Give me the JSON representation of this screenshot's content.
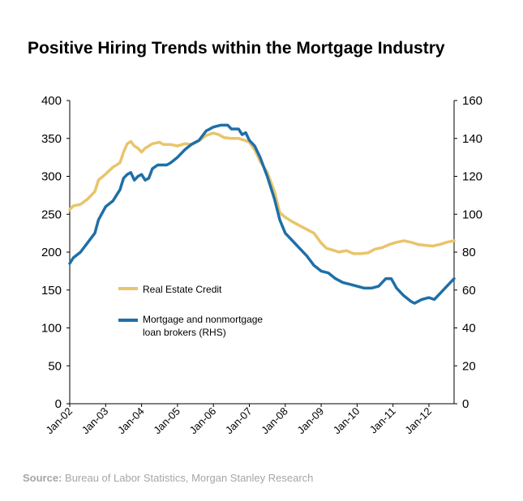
{
  "chart_data": {
    "type": "line",
    "title": "Positive Hiring Trends within the Mortgage Industry",
    "xlabel": "",
    "ylabel": "",
    "left_axis": {
      "ylim": [
        0,
        400
      ],
      "ticks": [
        "0",
        "50",
        "100",
        "150",
        "200",
        "250",
        "300",
        "350",
        "400"
      ]
    },
    "right_axis": {
      "ylim": [
        0,
        160
      ],
      "ticks": [
        "0",
        "20",
        "40",
        "60",
        "80",
        "100",
        "120",
        "140",
        "160"
      ]
    },
    "x_ticks": [
      "Jan-02",
      "Jan-03",
      "Jan-04",
      "Jan-05",
      "Jan-06",
      "Jan-07",
      "Jan-08",
      "Jan-09",
      "Jan-10",
      "Jan-11",
      "Jan-12"
    ],
    "x_range": [
      2002.0,
      2012.7
    ],
    "grid": false,
    "legend_position": "center-left",
    "series": [
      {
        "name": "Real Estate Credit",
        "axis": "left",
        "color": "#e9c46a",
        "points": [
          [
            2002.0,
            256
          ],
          [
            2002.1,
            261
          ],
          [
            2002.3,
            263
          ],
          [
            2002.5,
            270
          ],
          [
            2002.7,
            280
          ],
          [
            2002.8,
            295
          ],
          [
            2003.0,
            303
          ],
          [
            2003.2,
            312
          ],
          [
            2003.4,
            318
          ],
          [
            2003.5,
            332
          ],
          [
            2003.6,
            343
          ],
          [
            2003.7,
            346
          ],
          [
            2003.8,
            340
          ],
          [
            2003.9,
            337
          ],
          [
            2004.0,
            332
          ],
          [
            2004.1,
            337
          ],
          [
            2004.3,
            343
          ],
          [
            2004.5,
            345
          ],
          [
            2004.6,
            342
          ],
          [
            2004.8,
            342
          ],
          [
            2005.0,
            340
          ],
          [
            2005.2,
            343
          ],
          [
            2005.4,
            342
          ],
          [
            2005.6,
            347
          ],
          [
            2005.8,
            354
          ],
          [
            2006.0,
            357
          ],
          [
            2006.15,
            355
          ],
          [
            2006.3,
            351
          ],
          [
            2006.5,
            350
          ],
          [
            2006.7,
            350
          ],
          [
            2006.9,
            347
          ],
          [
            2007.0,
            345
          ],
          [
            2007.15,
            335
          ],
          [
            2007.3,
            320
          ],
          [
            2007.5,
            305
          ],
          [
            2007.7,
            280
          ],
          [
            2007.85,
            252
          ],
          [
            2008.0,
            246
          ],
          [
            2008.2,
            240
          ],
          [
            2008.4,
            235
          ],
          [
            2008.6,
            230
          ],
          [
            2008.8,
            225
          ],
          [
            2009.0,
            212
          ],
          [
            2009.15,
            205
          ],
          [
            2009.3,
            203
          ],
          [
            2009.5,
            200
          ],
          [
            2009.7,
            202
          ],
          [
            2009.9,
            198
          ],
          [
            2010.1,
            198
          ],
          [
            2010.3,
            199
          ],
          [
            2010.5,
            204
          ],
          [
            2010.7,
            206
          ],
          [
            2010.9,
            210
          ],
          [
            2011.1,
            213
          ],
          [
            2011.3,
            215
          ],
          [
            2011.5,
            213
          ],
          [
            2011.7,
            210
          ],
          [
            2011.9,
            209
          ],
          [
            2012.1,
            208
          ],
          [
            2012.3,
            210
          ],
          [
            2012.5,
            213
          ],
          [
            2012.7,
            215
          ]
        ]
      },
      {
        "name": "Mortgage and nonmortgage loan brokers (RHS)",
        "axis": "right",
        "color": "#1f6fa8",
        "points": [
          [
            2002.0,
            74
          ],
          [
            2002.1,
            77
          ],
          [
            2002.3,
            80
          ],
          [
            2002.5,
            85
          ],
          [
            2002.7,
            90
          ],
          [
            2002.8,
            97
          ],
          [
            2003.0,
            104
          ],
          [
            2003.2,
            107
          ],
          [
            2003.4,
            113
          ],
          [
            2003.5,
            119
          ],
          [
            2003.6,
            121
          ],
          [
            2003.7,
            122
          ],
          [
            2003.8,
            118
          ],
          [
            2003.9,
            120
          ],
          [
            2004.0,
            121
          ],
          [
            2004.1,
            118
          ],
          [
            2004.2,
            119
          ],
          [
            2004.3,
            124
          ],
          [
            2004.45,
            126
          ],
          [
            2004.7,
            126
          ],
          [
            2004.8,
            127
          ],
          [
            2005.0,
            130
          ],
          [
            2005.2,
            134
          ],
          [
            2005.4,
            137
          ],
          [
            2005.6,
            139
          ],
          [
            2005.8,
            144
          ],
          [
            2006.0,
            146
          ],
          [
            2006.2,
            147
          ],
          [
            2006.4,
            147
          ],
          [
            2006.5,
            145
          ],
          [
            2006.7,
            145
          ],
          [
            2006.8,
            142
          ],
          [
            2006.9,
            143
          ],
          [
            2007.0,
            139
          ],
          [
            2007.15,
            136
          ],
          [
            2007.3,
            130
          ],
          [
            2007.5,
            120
          ],
          [
            2007.7,
            108
          ],
          [
            2007.85,
            97
          ],
          [
            2008.0,
            90
          ],
          [
            2008.2,
            86
          ],
          [
            2008.4,
            82
          ],
          [
            2008.6,
            78
          ],
          [
            2008.8,
            73
          ],
          [
            2009.0,
            70
          ],
          [
            2009.2,
            69
          ],
          [
            2009.4,
            66
          ],
          [
            2009.6,
            64
          ],
          [
            2009.8,
            63
          ],
          [
            2010.0,
            62
          ],
          [
            2010.2,
            61
          ],
          [
            2010.4,
            61
          ],
          [
            2010.6,
            62
          ],
          [
            2010.8,
            66
          ],
          [
            2010.95,
            66
          ],
          [
            2011.1,
            61
          ],
          [
            2011.3,
            57
          ],
          [
            2011.5,
            54
          ],
          [
            2011.6,
            53
          ],
          [
            2011.8,
            55
          ],
          [
            2012.0,
            56
          ],
          [
            2012.15,
            55
          ],
          [
            2012.3,
            58
          ],
          [
            2012.5,
            62
          ],
          [
            2012.7,
            66
          ]
        ]
      }
    ]
  },
  "source": {
    "label": "Source:",
    "text": " Bureau of Labor Statistics, Morgan Stanley Research"
  }
}
